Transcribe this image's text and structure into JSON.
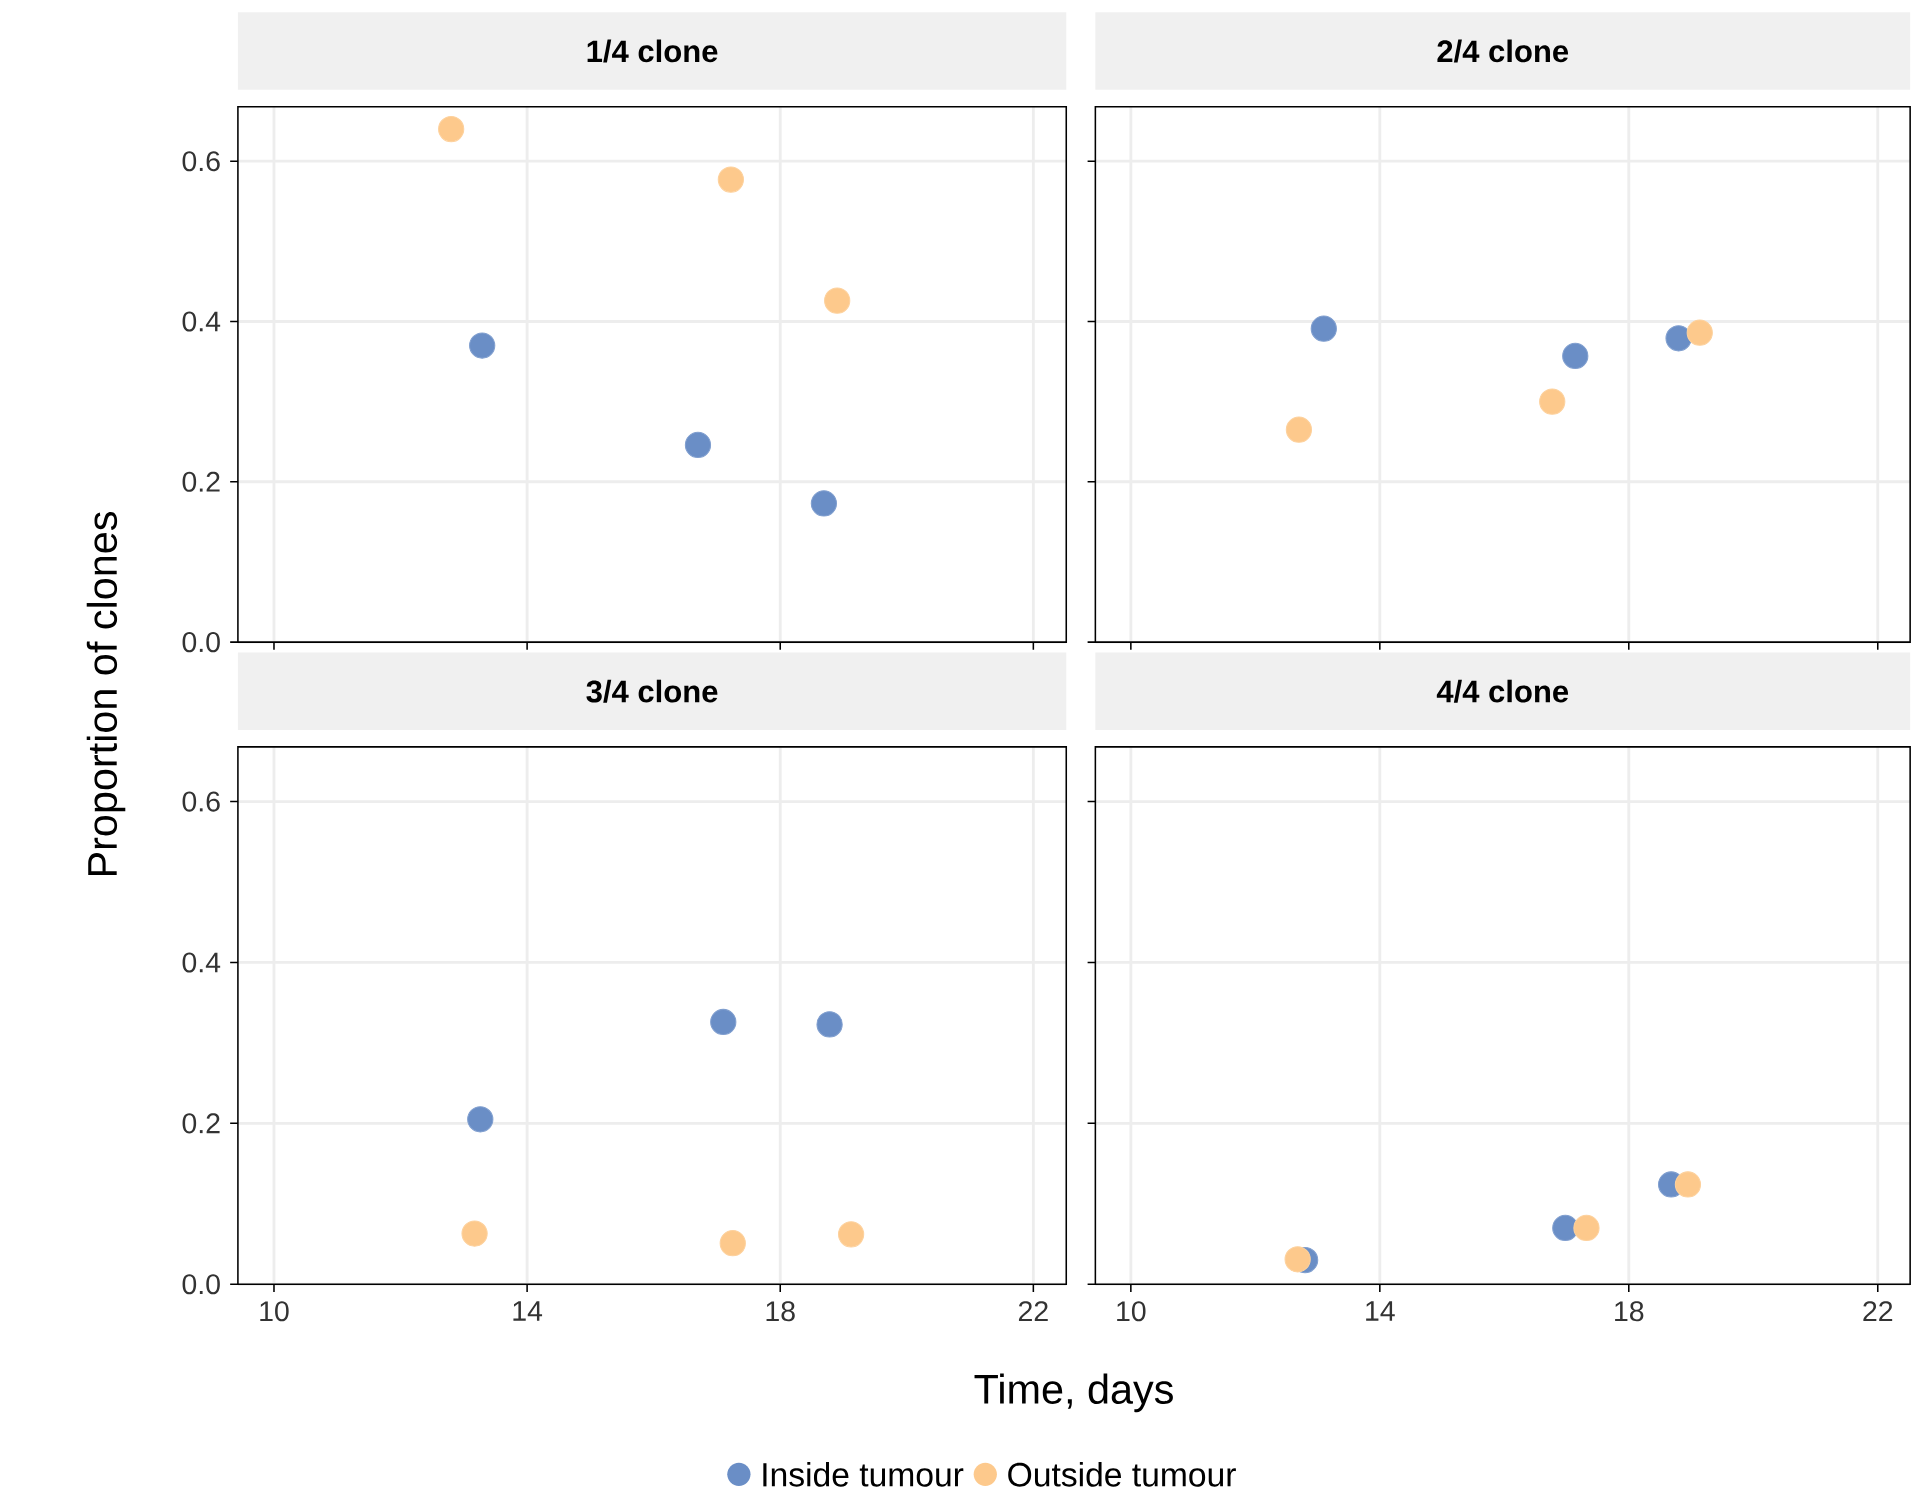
{
  "chart_data": [
    {
      "type": "scatter",
      "title": "1/4 clone",
      "ylabel": "Proportion of clones",
      "legend": "bottom",
      "grid": true,
      "marker": "circle",
      "tick_labels": "y",
      "xlim": [
        9.43,
        22.52
      ],
      "ylim": [
        0,
        0.668
      ],
      "xticks": [
        10,
        14,
        18,
        22
      ],
      "yticks": [
        {
          "value": 0,
          "label": "0.0"
        },
        {
          "value": 0.2,
          "label": "0.2"
        },
        {
          "value": 0.4,
          "label": "0.4"
        },
        {
          "value": 0.6,
          "label": "0.6"
        }
      ],
      "series": [
        {
          "name": "Inside tumour",
          "color": "#6a8ec6",
          "x": [
            13.29,
            16.7,
            18.69
          ],
          "values": [
            0.37,
            0.246,
            0.173
          ]
        },
        {
          "name": "Outside tumour",
          "color": "#fdc98c",
          "x": [
            12.8,
            17.22,
            18.9
          ],
          "values": [
            0.64,
            0.577,
            0.426
          ]
        }
      ]
    },
    {
      "type": "scatter",
      "title": "2/4 clone",
      "grid": true,
      "marker": "circle",
      "tick_labels": false,
      "xlim": [
        9.43,
        22.52
      ],
      "ylim": [
        0,
        0.668
      ],
      "xticks": [
        10,
        14,
        18,
        22
      ],
      "yticks": [
        0,
        0.2,
        0.4,
        0.6
      ],
      "series": [
        {
          "color": "#6a8ec6",
          "x": [
            13.1,
            17.14,
            18.8
          ],
          "values": [
            0.391,
            0.357,
            0.379
          ]
        },
        {
          "color": "#fdc98c",
          "x": [
            12.7,
            16.77,
            19.14
          ],
          "values": [
            0.265,
            0.3,
            0.386
          ]
        }
      ]
    },
    {
      "type": "scatter",
      "title": "3/4 clone",
      "xlabel": "Time, days",
      "grid": true,
      "marker": "circle",
      "xlim": [
        9.43,
        22.52
      ],
      "ylim": [
        0,
        0.668
      ],
      "xticks": [
        10,
        14,
        18,
        22
      ],
      "yticks": [
        {
          "value": 0,
          "label": "0.0"
        },
        {
          "value": 0.2,
          "label": "0.2"
        },
        {
          "value": 0.4,
          "label": "0.4"
        },
        {
          "value": 0.6,
          "label": "0.6"
        }
      ],
      "series": [
        {
          "color": "#6a8ec6",
          "x": [
            13.26,
            17.1,
            18.78
          ],
          "values": [
            0.205,
            0.326,
            0.323
          ]
        },
        {
          "color": "#fdc98c",
          "x": [
            13.17,
            17.25,
            19.12
          ],
          "values": [
            0.063,
            0.051,
            0.062
          ]
        }
      ]
    },
    {
      "type": "scatter",
      "title": "4/4 clone",
      "grid": true,
      "marker": "circle",
      "tick_labels": "x",
      "xlim": [
        9.43,
        22.52
      ],
      "ylim": [
        0,
        0.668
      ],
      "xticks": [
        10,
        14,
        18,
        22
      ],
      "yticks": [
        0,
        0.2,
        0.4,
        0.6
      ],
      "series": [
        {
          "color": "#6a8ec6",
          "x": [
            12.8,
            16.98,
            18.68
          ],
          "values": [
            0.03,
            0.07,
            0.124
          ]
        },
        {
          "color": "#fdc98c",
          "x": [
            12.68,
            17.32,
            18.95
          ],
          "values": [
            0.031,
            0.07,
            0.124
          ]
        }
      ]
    }
  ]
}
